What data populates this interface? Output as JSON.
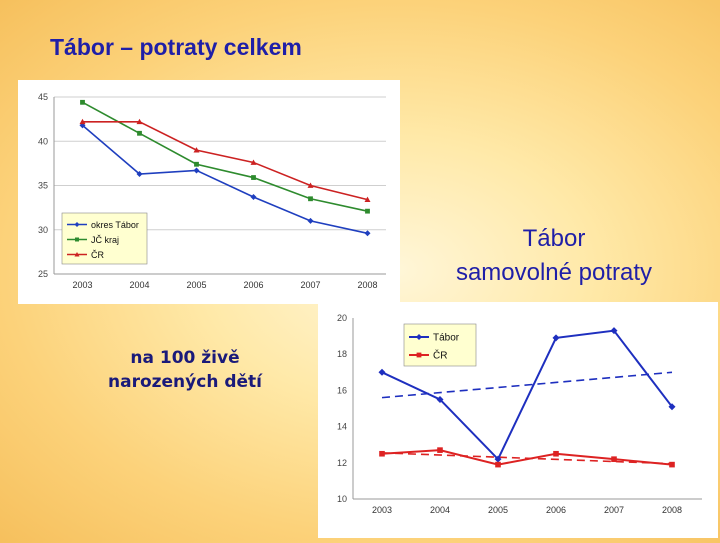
{
  "slide": {
    "title": "Tábor – potraty celkem",
    "right_title_line1": "Tábor",
    "right_title_line2": "samovolné potraty",
    "note_line1": "na 100 živě",
    "note_line2": "narozených dětí"
  },
  "chart_data": [
    {
      "type": "line",
      "x": [
        "2003",
        "2004",
        "2005",
        "2006",
        "2007",
        "2008"
      ],
      "ylim": [
        25,
        45
      ],
      "yticks": [
        "25",
        "30",
        "35",
        "40",
        "45"
      ],
      "grid": true,
      "legend": "bottom-left",
      "series": [
        {
          "name": "okres Tábor",
          "color": "#1f3fbf",
          "marker": "diamond",
          "values": [
            41.8,
            36.3,
            36.7,
            33.7,
            31.0,
            29.6
          ]
        },
        {
          "name": "JČ kraj",
          "color": "#2e8b2e",
          "marker": "square",
          "values": [
            44.4,
            40.9,
            37.4,
            35.9,
            33.5,
            32.1
          ]
        },
        {
          "name": "ČR",
          "color": "#cc2222",
          "marker": "triangle",
          "values": [
            42.2,
            42.2,
            39.0,
            37.6,
            35.0,
            33.4
          ]
        }
      ]
    },
    {
      "type": "line",
      "x": [
        "2003",
        "2004",
        "2005",
        "2006",
        "2007",
        "2008"
      ],
      "ylim": [
        10,
        20
      ],
      "yticks": [
        "10",
        "12",
        "14",
        "16",
        "18",
        "20"
      ],
      "grid": false,
      "legend": "top-left",
      "series": [
        {
          "name": "Tábor",
          "color": "#1e2fbf",
          "marker": "diamond",
          "values": [
            17.0,
            15.5,
            12.2,
            18.9,
            19.3,
            15.1
          ]
        },
        {
          "name": "ČR",
          "color": "#dd2222",
          "marker": "square",
          "values": [
            12.5,
            12.7,
            11.9,
            12.5,
            12.2,
            11.9
          ]
        }
      ],
      "trendlines": [
        {
          "color": "#1e2fbf",
          "values": [
            15.6,
            17.0
          ]
        },
        {
          "color": "#dd2222",
          "values": [
            12.55,
            11.95
          ]
        }
      ]
    }
  ]
}
